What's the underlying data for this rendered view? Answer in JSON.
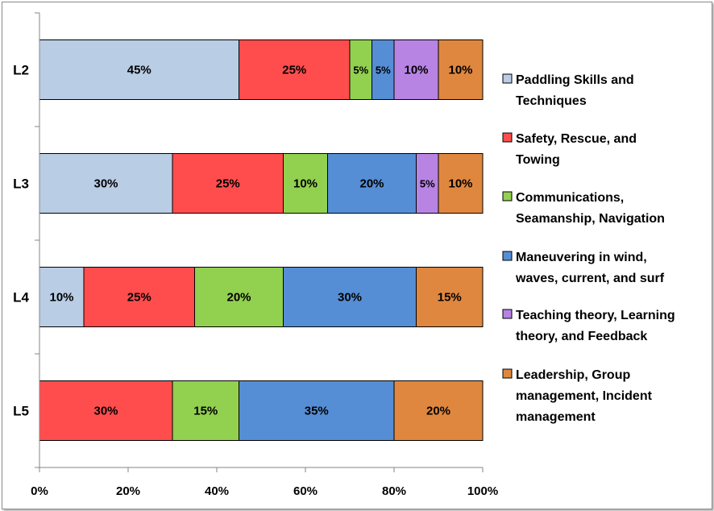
{
  "chart_data": {
    "type": "bar",
    "orientation": "horizontal",
    "stacked": true,
    "title": "",
    "xlabel": "",
    "ylabel": "",
    "xlim": [
      0,
      100
    ],
    "x_ticks": [
      "0%",
      "20%",
      "40%",
      "60%",
      "80%",
      "100%"
    ],
    "categories": [
      "L2",
      "L3",
      "L4",
      "L5"
    ],
    "legend_position": "right",
    "grid": false,
    "series": [
      {
        "name": "Paddling Skills and Techniques",
        "legend_lines": [
          "Paddling Skills and",
          "Techniques"
        ],
        "color": "#b9cde5",
        "values": [
          45,
          30,
          10,
          0
        ]
      },
      {
        "name": "Safety, Rescue, and Towing",
        "legend_lines": [
          "Safety, Rescue, and",
          "Towing"
        ],
        "color": "#ff4d4d",
        "values": [
          25,
          25,
          25,
          30
        ]
      },
      {
        "name": "Communications, Seamanship, Navigation",
        "legend_lines": [
          "Communications,",
          "Seamanship, Navigation"
        ],
        "color": "#92d050",
        "values": [
          5,
          10,
          20,
          15
        ]
      },
      {
        "name": "Maneuvering in wind, waves, current, and surf",
        "legend_lines": [
          "Maneuvering in wind,",
          "waves, current, and surf"
        ],
        "color": "#558ed5",
        "values": [
          5,
          20,
          30,
          35
        ]
      },
      {
        "name": "Teaching theory, Learning theory, and Feedback",
        "legend_lines": [
          "Teaching theory, Learning",
          "theory, and Feedback"
        ],
        "color": "#b884e4",
        "values": [
          10,
          5,
          0,
          0
        ]
      },
      {
        "name": "Leadership, Group management, Incident management",
        "legend_lines": [
          "Leadership, Group",
          "management, Incident",
          "management"
        ],
        "color": "#e0873f",
        "values": [
          10,
          10,
          15,
          20
        ]
      }
    ]
  }
}
